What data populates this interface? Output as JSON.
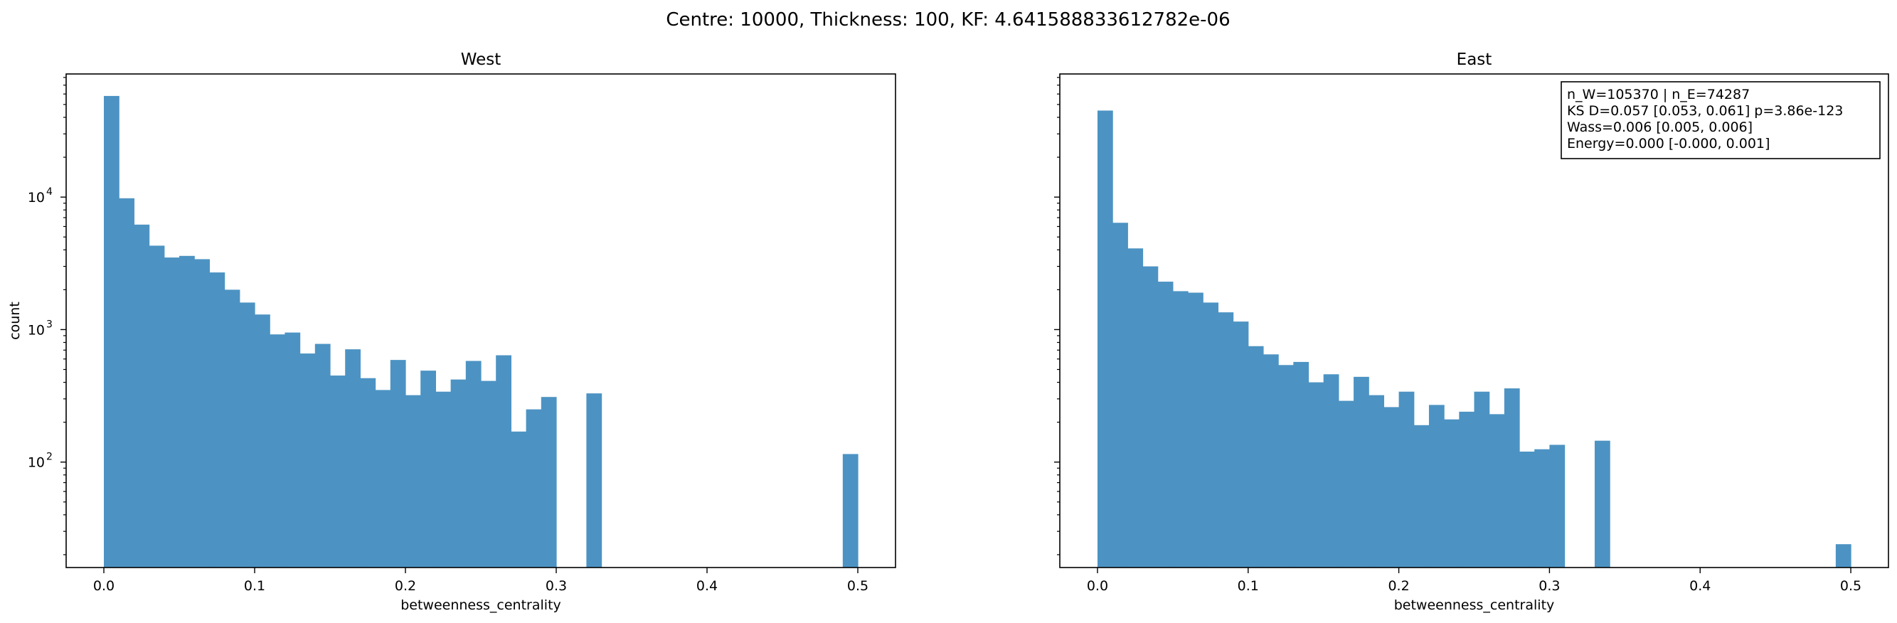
{
  "suptitle": "Centre: 10000, Thickness: 100, KF: 4.641588833612782e-06",
  "bar_color": "#4c93c3",
  "chart_data": [
    {
      "type": "bar",
      "title": "West",
      "xlabel": "betweenness_centrality",
      "ylabel": "count",
      "yscale": "log",
      "xlim": [
        -0.025,
        0.525
      ],
      "ylim": [
        16,
        85000
      ],
      "xticks": [
        0.0,
        0.1,
        0.2,
        0.3,
        0.4,
        0.5
      ],
      "xtick_labels": [
        "0.0",
        "0.1",
        "0.2",
        "0.3",
        "0.4",
        "0.5"
      ],
      "yticks": [
        100,
        1000,
        10000
      ],
      "ytick_labels": [
        "10^2",
        "10^3",
        "10^4"
      ],
      "bin_width": 0.01,
      "bin_starts": [
        0.0,
        0.01,
        0.02,
        0.03,
        0.04,
        0.05,
        0.06,
        0.07,
        0.08,
        0.09,
        0.1,
        0.11,
        0.12,
        0.13,
        0.14,
        0.15,
        0.16,
        0.17,
        0.18,
        0.19,
        0.2,
        0.21,
        0.22,
        0.23,
        0.24,
        0.25,
        0.26,
        0.27,
        0.28,
        0.29,
        0.3,
        0.31,
        0.32,
        0.33,
        0.34,
        0.35,
        0.36,
        0.37,
        0.38,
        0.39,
        0.4,
        0.41,
        0.42,
        0.43,
        0.44,
        0.45,
        0.46,
        0.47,
        0.48,
        0.49
      ],
      "values": [
        58000,
        9800,
        6200,
        4300,
        3500,
        3600,
        3400,
        2700,
        2000,
        1600,
        1300,
        920,
        950,
        660,
        780,
        450,
        710,
        430,
        350,
        590,
        320,
        490,
        340,
        420,
        580,
        410,
        640,
        170,
        250,
        310,
        0,
        0,
        330,
        0,
        0,
        0,
        0,
        0,
        0,
        0,
        0,
        0,
        0,
        0,
        0,
        0,
        0,
        0,
        0,
        115
      ]
    },
    {
      "type": "bar",
      "title": "East",
      "xlabel": "betweenness_centrality",
      "ylabel": "",
      "yscale": "log",
      "xlim": [
        -0.025,
        0.525
      ],
      "ylim": [
        16,
        85000
      ],
      "xticks": [
        0.0,
        0.1,
        0.2,
        0.3,
        0.4,
        0.5
      ],
      "xtick_labels": [
        "0.0",
        "0.1",
        "0.2",
        "0.3",
        "0.4",
        "0.5"
      ],
      "yticks": [
        100,
        1000,
        10000
      ],
      "ytick_labels": [],
      "bin_width": 0.01,
      "bin_starts": [
        0.0,
        0.01,
        0.02,
        0.03,
        0.04,
        0.05,
        0.06,
        0.07,
        0.08,
        0.09,
        0.1,
        0.11,
        0.12,
        0.13,
        0.14,
        0.15,
        0.16,
        0.17,
        0.18,
        0.19,
        0.2,
        0.21,
        0.22,
        0.23,
        0.24,
        0.25,
        0.26,
        0.27,
        0.28,
        0.29,
        0.3,
        0.31,
        0.32,
        0.33,
        0.34,
        0.35,
        0.36,
        0.37,
        0.38,
        0.39,
        0.4,
        0.41,
        0.42,
        0.43,
        0.44,
        0.45,
        0.46,
        0.47,
        0.48,
        0.49
      ],
      "values": [
        45000,
        6400,
        4100,
        3000,
        2300,
        1950,
        1900,
        1600,
        1350,
        1150,
        750,
        650,
        540,
        570,
        400,
        460,
        290,
        440,
        320,
        260,
        340,
        190,
        270,
        210,
        240,
        340,
        230,
        360,
        120,
        125,
        135,
        0,
        0,
        145,
        0,
        0,
        0,
        0,
        0,
        0,
        0,
        0,
        0,
        0,
        0,
        0,
        0,
        0,
        0,
        24
      ],
      "annotation": [
        "n_W=105370 | n_E=74287",
        "KS D=0.057 [0.053, 0.061]  p=3.86e-123",
        "Wass=0.006 [0.005, 0.006]",
        "Energy=0.000 [-0.000, 0.001]"
      ]
    }
  ]
}
